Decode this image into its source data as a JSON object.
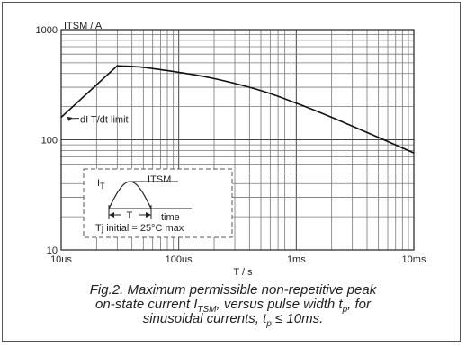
{
  "chart_data": {
    "type": "line",
    "ylabel": "ITSM / A",
    "xlabel": "T / s",
    "x_scale": "log",
    "y_scale": "log",
    "xlim": [
      1e-05,
      0.01
    ],
    "ylim": [
      10,
      1000
    ],
    "xticks": [
      {
        "value": 1e-05,
        "label": "10us"
      },
      {
        "value": 0.0001,
        "label": "100us"
      },
      {
        "value": 0.001,
        "label": "1ms"
      },
      {
        "value": 0.01,
        "label": "10ms"
      }
    ],
    "yticks": [
      {
        "value": 10,
        "label": "10"
      },
      {
        "value": 100,
        "label": "100"
      },
      {
        "value": 1000,
        "label": "1000"
      }
    ],
    "grid": true,
    "series": [
      {
        "points": [
          {
            "x": 1e-05,
            "y": 160
          },
          {
            "x": 3e-05,
            "y": 470
          },
          {
            "x": 5e-05,
            "y": 455
          },
          {
            "x": 0.0001,
            "y": 410
          },
          {
            "x": 0.0002,
            "y": 360
          },
          {
            "x": 0.0005,
            "y": 280
          },
          {
            "x": 0.001,
            "y": 215
          },
          {
            "x": 0.002,
            "y": 160
          },
          {
            "x": 0.005,
            "y": 105
          },
          {
            "x": 0.01,
            "y": 76
          }
        ]
      }
    ],
    "annotation": "dI T/dt limit",
    "inset": {
      "label_current": "I",
      "label_current_sub": "T",
      "label_peak": "ITSM",
      "label_period": "T",
      "label_time": "time",
      "condition": "Tj initial = 25°C max"
    }
  },
  "caption": {
    "line1": "Fig.2.   Maximum permissible non-repetitive peak",
    "line2_a": "on-state current I",
    "line2_sub1": "TSM",
    "line2_b": ", versus pulse width t",
    "line2_sub2": "p",
    "line2_c": ", for",
    "line3_a": "sinusoidal currents, t",
    "line3_sub": "p",
    "line3_b": " ≤ 10ms."
  }
}
